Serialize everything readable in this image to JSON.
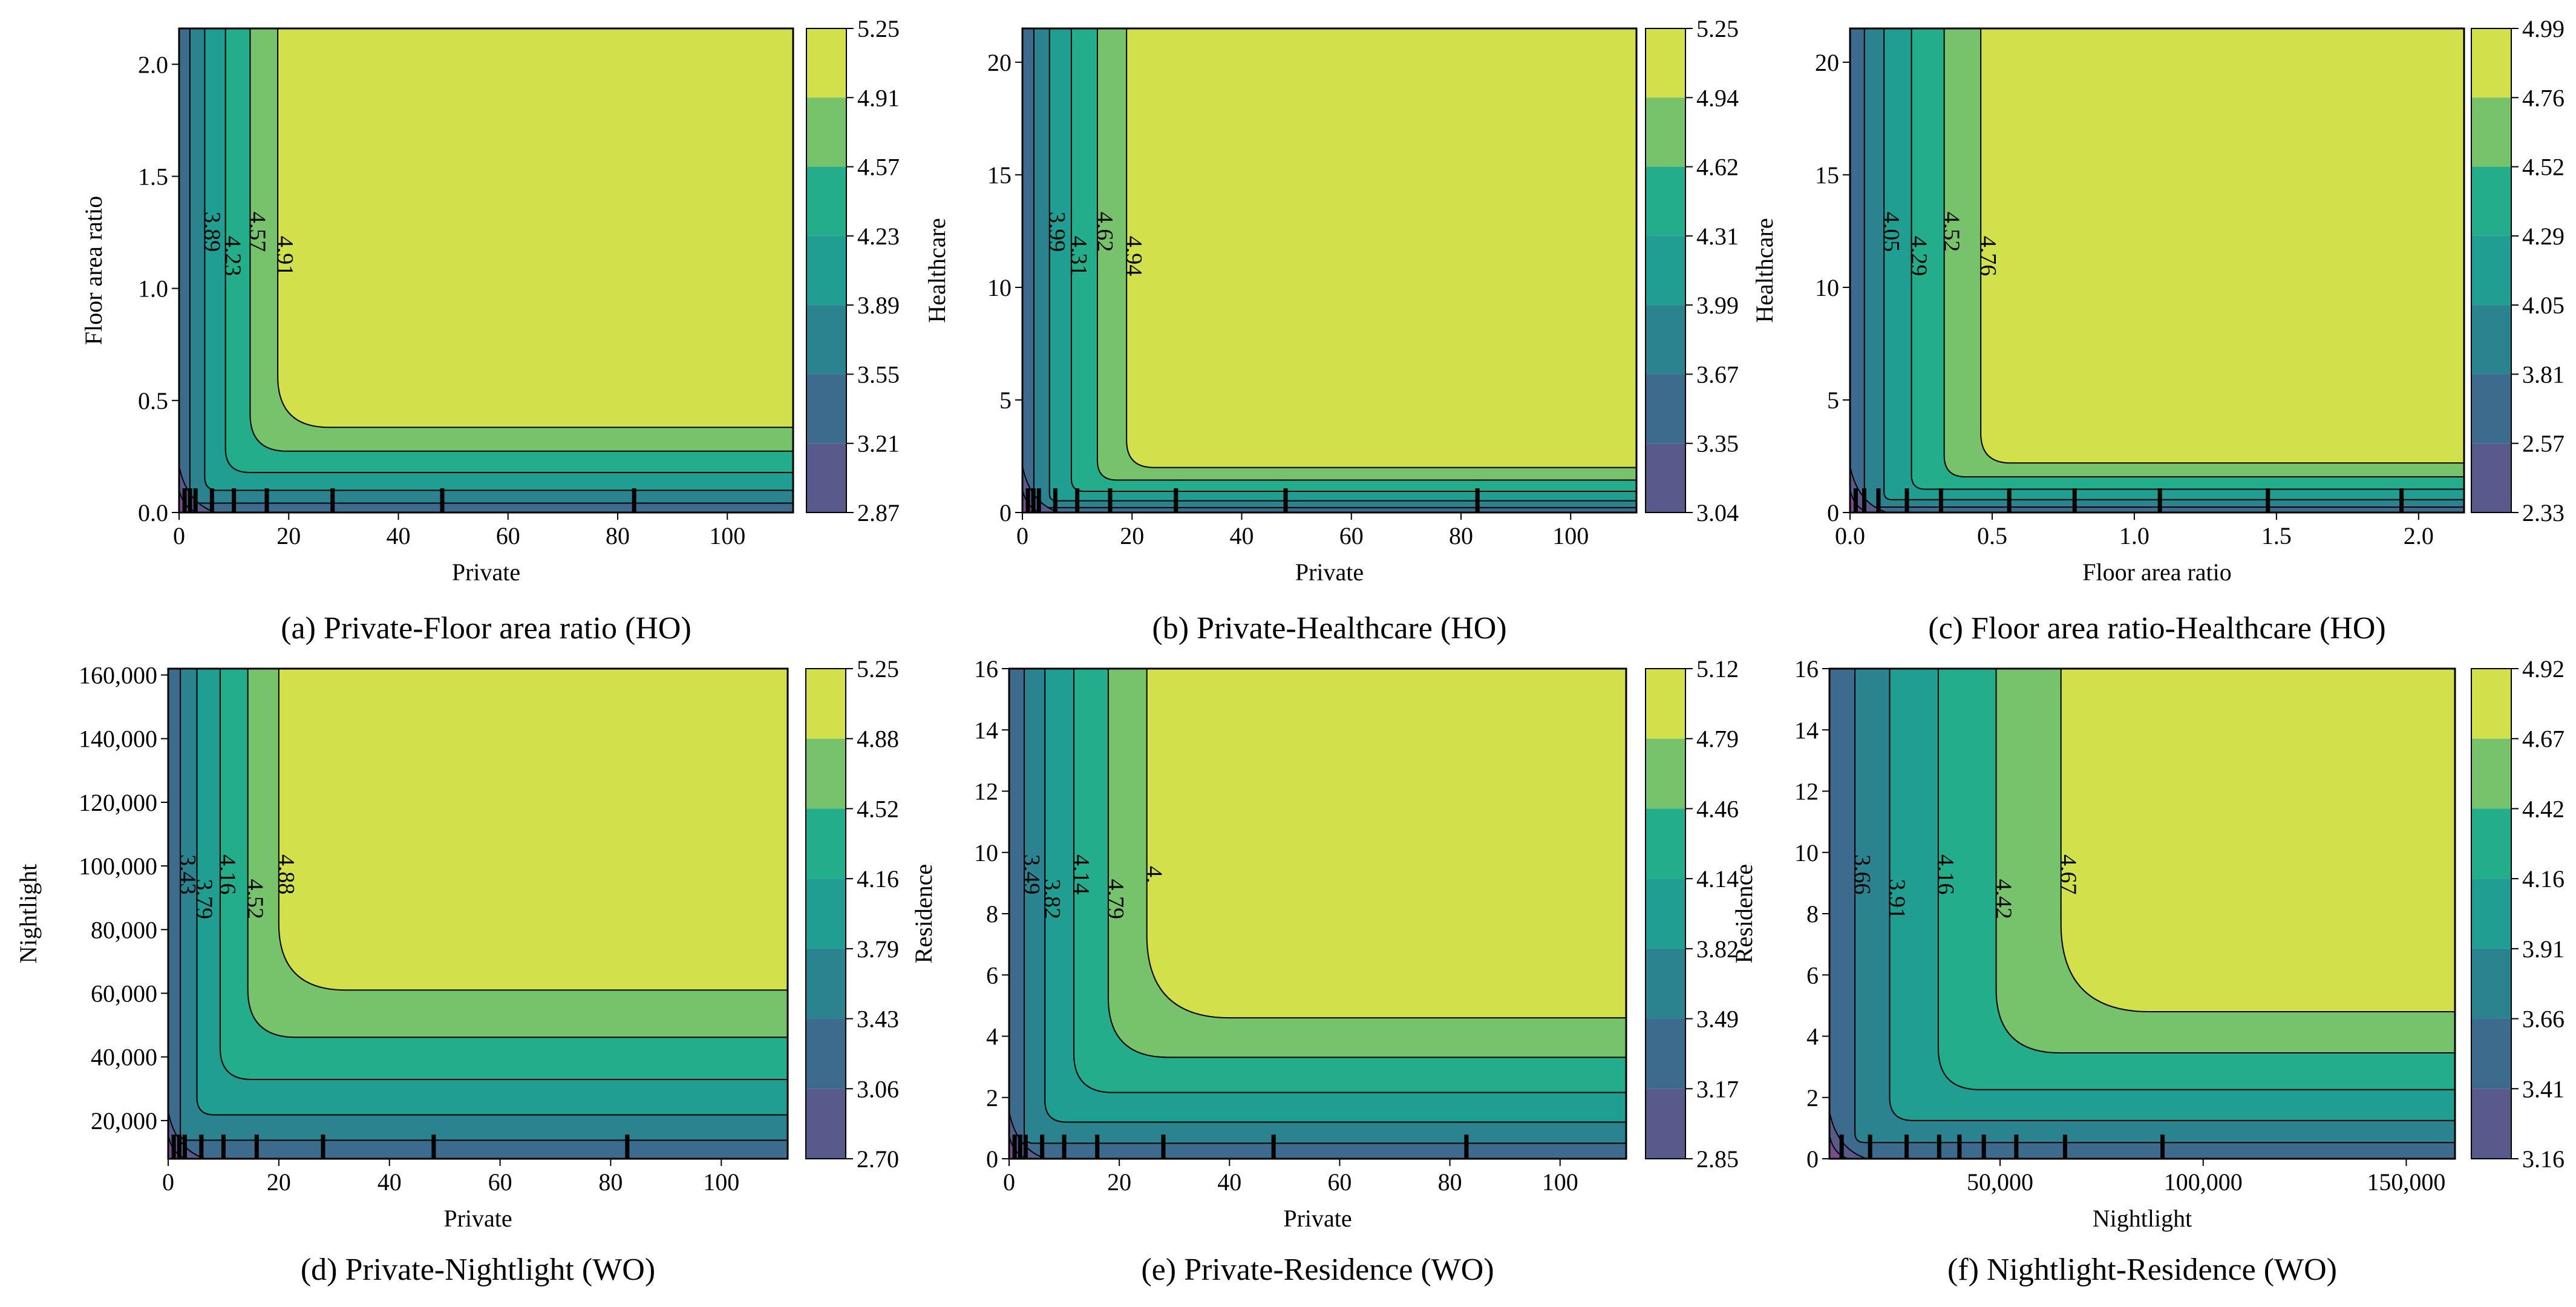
{
  "chart_data": [
    {
      "type": "contour",
      "caption": "(a) Private-Floor area ratio (HO)",
      "xlabel": "Private",
      "ylabel": "Floor area ratio",
      "xlim": [
        0,
        112
      ],
      "ylim": [
        0,
        2.16
      ],
      "xticks": [
        0,
        20,
        40,
        60,
        80,
        100
      ],
      "xtick_labels": [
        "0",
        "20",
        "40",
        "60",
        "80",
        "100"
      ],
      "yticks": [
        0,
        0.5,
        1.0,
        1.5,
        2.0
      ],
      "ytick_labels": [
        "0.0",
        "0.5",
        "1.0",
        "1.5",
        "2.0"
      ],
      "x_transition": 18,
      "y_transition": 0.38,
      "colorbar_levels": [
        "5.25",
        "4.91",
        "4.57",
        "4.23",
        "3.89",
        "3.55",
        "3.21",
        "2.87"
      ],
      "contour_labels": [
        "3.89",
        "4.23",
        "4.57",
        "4.91"
      ],
      "rug": [
        1,
        2,
        3,
        6,
        10,
        16,
        28,
        48,
        83
      ]
    },
    {
      "type": "contour",
      "caption": "(b) Private-Healthcare (HO)",
      "xlabel": "Private",
      "ylabel": "Healthcare",
      "xlim": [
        0,
        112
      ],
      "ylim": [
        0,
        21.5
      ],
      "xticks": [
        0,
        20,
        40,
        60,
        80,
        100
      ],
      "xtick_labels": [
        "0",
        "20",
        "40",
        "60",
        "80",
        "100"
      ],
      "yticks": [
        0,
        5,
        10,
        15,
        20
      ],
      "ytick_labels": [
        "0",
        "5",
        "10",
        "15",
        "20"
      ],
      "x_transition": 19,
      "y_transition": 2.0,
      "colorbar_levels": [
        "5.25",
        "4.94",
        "4.62",
        "4.31",
        "3.99",
        "3.67",
        "3.35",
        "3.04"
      ],
      "contour_labels": [
        "3.99",
        "4.31",
        "4.62",
        "4.94"
      ],
      "rug": [
        1,
        2,
        3,
        6,
        10,
        16,
        28,
        48,
        83
      ]
    },
    {
      "type": "contour",
      "caption": "(c) Floor area ratio-Healthcare (HO)",
      "xlabel": "Floor area ratio",
      "ylabel": "Healthcare",
      "xlim": [
        0,
        2.16
      ],
      "ylim": [
        0,
        21.5
      ],
      "xticks": [
        0,
        0.5,
        1.0,
        1.5,
        2.0
      ],
      "xtick_labels": [
        "0.0",
        "0.5",
        "1.0",
        "1.5",
        "2.0"
      ],
      "yticks": [
        0,
        5,
        10,
        15,
        20
      ],
      "ytick_labels": [
        "0",
        "5",
        "10",
        "15",
        "20"
      ],
      "x_transition": 0.46,
      "y_transition": 2.2,
      "colorbar_levels": [
        "4.99",
        "4.76",
        "4.52",
        "4.29",
        "4.05",
        "3.81",
        "2.57",
        "2.33"
      ],
      "contour_labels": [
        "4.05",
        "4.29",
        "4.52",
        "4.76"
      ],
      "rug": [
        0.02,
        0.05,
        0.1,
        0.2,
        0.32,
        0.56,
        0.79,
        1.09,
        1.47,
        1.94
      ]
    },
    {
      "type": "contour",
      "caption": "(d) Private-Nightlight (WO)",
      "xlabel": "Private",
      "ylabel": "Nightlight",
      "xlim": [
        0,
        112
      ],
      "ylim": [
        8000,
        162000
      ],
      "xticks": [
        0,
        20,
        40,
        60,
        80,
        100
      ],
      "xtick_labels": [
        "0",
        "20",
        "40",
        "60",
        "80",
        "100"
      ],
      "yticks": [
        20000,
        40000,
        60000,
        80000,
        100000,
        120000,
        140000,
        160000
      ],
      "ytick_labels": [
        "20,000",
        "40,000",
        "60,000",
        "80,000",
        "100,000",
        "120,000",
        "140,000",
        "160,000"
      ],
      "x_transition": 20,
      "y_transition": 61000,
      "colorbar_levels": [
        "5.25",
        "4.88",
        "4.52",
        "4.16",
        "3.79",
        "3.43",
        "3.06",
        "2.70"
      ],
      "contour_labels": [
        "3.43",
        "3.79",
        "4.16",
        "4.52",
        "4.88"
      ],
      "rug": [
        1,
        2,
        3,
        6,
        10,
        16,
        28,
        48,
        83
      ]
    },
    {
      "type": "contour",
      "caption": "(e) Private-Residence (WO)",
      "xlabel": "Private",
      "ylabel": "Residence",
      "xlim": [
        0,
        112
      ],
      "ylim": [
        0,
        16
      ],
      "xticks": [
        0,
        20,
        40,
        60,
        80,
        100
      ],
      "xtick_labels": [
        "0",
        "20",
        "40",
        "60",
        "80",
        "100"
      ],
      "yticks": [
        0,
        2,
        4,
        6,
        8,
        10,
        12,
        14,
        16
      ],
      "ytick_labels": [
        "0",
        "2",
        "4",
        "6",
        "8",
        "10",
        "12",
        "14",
        "16"
      ],
      "x_transition": 25,
      "y_transition": 4.6,
      "colorbar_levels": [
        "5.12",
        "4.79",
        "4.46",
        "4.14",
        "3.82",
        "3.49",
        "3.17",
        "2.85"
      ],
      "contour_labels": [
        "3.49",
        "3.82",
        "4.14",
        "4.79",
        "4."
      ],
      "rug": [
        1,
        2,
        3,
        6,
        10,
        16,
        28,
        48,
        83
      ]
    },
    {
      "type": "contour",
      "caption": "(f) Nightlight-Residence (WO)",
      "xlabel": "Nightlight",
      "ylabel": "Residence",
      "xlim": [
        8000,
        162000
      ],
      "ylim": [
        0,
        16
      ],
      "xticks": [
        50000,
        100000,
        150000
      ],
      "xtick_labels": [
        "50,000",
        "100,000",
        "150,000"
      ],
      "yticks": [
        0,
        2,
        4,
        6,
        8,
        10,
        12,
        14,
        16
      ],
      "ytick_labels": [
        "0",
        "2",
        "4",
        "6",
        "8",
        "10",
        "12",
        "14",
        "16"
      ],
      "x_transition": 65000,
      "y_transition": 4.8,
      "colorbar_levels": [
        "4.92",
        "4.67",
        "4.42",
        "4.16",
        "3.91",
        "3.66",
        "3.41",
        "3.16"
      ],
      "contour_labels": [
        "3.66",
        "3.91",
        "4.16",
        "4.42",
        "4.67"
      ],
      "rug": [
        11000,
        18000,
        27000,
        35000,
        40000,
        46000,
        54000,
        66000,
        90000
      ]
    }
  ],
  "colors": {
    "level_fills": [
      "#d2e14b",
      "#77c36b",
      "#23ad8b",
      "#1f9e91",
      "#2a838f",
      "#3d6b8e",
      "#585a8c",
      "#7a4b8e"
    ],
    "line": "#000000"
  }
}
